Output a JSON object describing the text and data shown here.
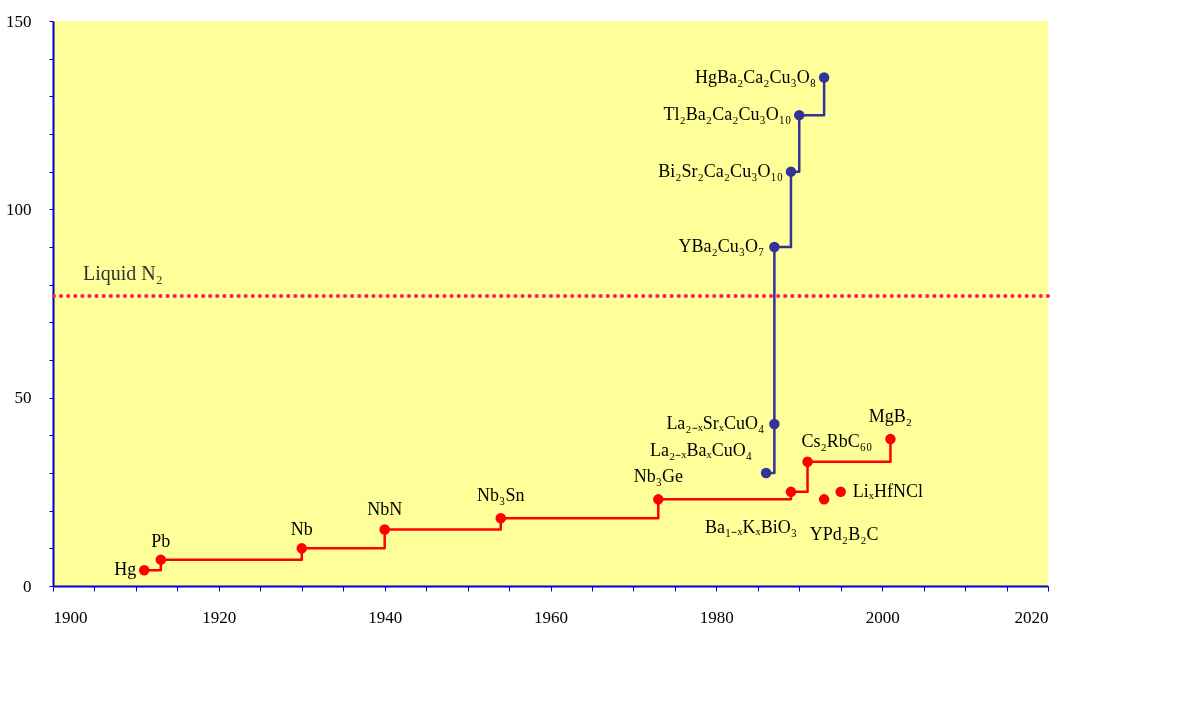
{
  "chart_data": {
    "type": "step",
    "xlim": [
      1900,
      2020
    ],
    "xticks": [
      1900,
      {
        "value": 1905,
        "label": null
      },
      {
        "value": 1910,
        "label": null
      },
      {
        "value": 1915,
        "label": null
      },
      1920,
      {
        "value": 1925,
        "label": null
      },
      {
        "value": 1930,
        "label": null
      },
      {
        "value": 1935,
        "label": null
      },
      1940,
      {
        "value": 1945,
        "label": null
      },
      {
        "value": 1950,
        "label": null
      },
      {
        "value": 1955,
        "label": null
      },
      1960,
      {
        "value": 1965,
        "label": null
      },
      {
        "value": 1970,
        "label": null
      },
      {
        "value": 1975,
        "label": null
      },
      1980,
      {
        "value": 1985,
        "label": null
      },
      {
        "value": 1990,
        "label": null
      },
      {
        "value": 1995,
        "label": null
      },
      2000,
      {
        "value": 2005,
        "label": null
      },
      {
        "value": 2010,
        "label": null
      },
      {
        "value": 2015,
        "label": null
      },
      2020
    ],
    "ylim": [
      0,
      150
    ],
    "yticks": [
      0,
      {
        "value": 10,
        "label": null
      },
      {
        "value": 20,
        "label": null
      },
      {
        "value": 30,
        "label": null
      },
      {
        "value": 40,
        "label": null
      },
      50,
      {
        "value": 60,
        "label": null
      },
      {
        "value": 70,
        "label": null
      },
      {
        "value": 80,
        "label": null
      },
      {
        "value": 90,
        "label": null
      },
      100,
      {
        "value": 110,
        "label": null
      },
      {
        "value": 120,
        "label": null
      },
      {
        "value": 130,
        "label": null
      },
      {
        "value": 140,
        "label": null
      },
      150
    ],
    "grid": false,
    "marker": "circle",
    "line_style": "solid",
    "series": [
      {
        "type": "step",
        "color": "#ff0000",
        "x": [
          1911,
          1913,
          1930,
          1940,
          1954,
          1973,
          1989,
          1991,
          2001
        ],
        "values": [
          4.2,
          7,
          10,
          15,
          18,
          23,
          25,
          33,
          39
        ]
      },
      {
        "type": "step",
        "color": "#333399",
        "x": [
          1986,
          1987,
          1987,
          1989,
          1990,
          1993
        ],
        "values": [
          30,
          43,
          90,
          110,
          125,
          135
        ]
      },
      {
        "type": "scatter",
        "color": "#ff0000",
        "x": [
          1995,
          1993
        ],
        "values": [
          25,
          23
        ]
      }
    ],
    "ref_lines": [
      {
        "axis": "y",
        "value": 77,
        "label": "Liquid N₂",
        "color": "#ff1a66",
        "line_style": "dotted"
      }
    ],
    "annotations": [
      {
        "text": "Hg",
        "x": 1911,
        "y": 4.2
      },
      {
        "text": "Pb",
        "x": 1913,
        "y": 7
      },
      {
        "text": "Nb",
        "x": 1930,
        "y": 10
      },
      {
        "text": "NbN",
        "x": 1940,
        "y": 15
      },
      {
        "text": "Nb₃Sn",
        "x": 1954,
        "y": 18
      },
      {
        "text": "Nb₃Ge",
        "x": 1973,
        "y": 23
      },
      {
        "text": "Ba₁₋ₓKₓBiO₃",
        "x": 1989,
        "y": 25
      },
      {
        "text": "Cs₂RbC₆₀",
        "x": 1991,
        "y": 33
      },
      {
        "text": "MgB₂",
        "x": 2001,
        "y": 39
      },
      {
        "text": "LiₓHfNCl",
        "x": 1995,
        "y": 25
      },
      {
        "text": "YPd₂B₂C",
        "x": 1993,
        "y": 23
      },
      {
        "text": "La₂₋ₓBaₓCuO₄",
        "x": 1986,
        "y": 30
      },
      {
        "text": "La₂₋ₓSrₓCuO₄",
        "x": 1987,
        "y": 43
      },
      {
        "text": "YBa₂Cu₃O₇",
        "x": 1987,
        "y": 90
      },
      {
        "text": "Bi₂Sr₂Ca₂Cu₃O₁₀",
        "x": 1989,
        "y": 110
      },
      {
        "text": "Tl₂Ba₂Ca₂Cu₃O₁₀",
        "x": 1990,
        "y": 125
      },
      {
        "text": "HgBa₂Ca₂Cu₃O₈",
        "x": 1993,
        "y": 135
      }
    ]
  }
}
